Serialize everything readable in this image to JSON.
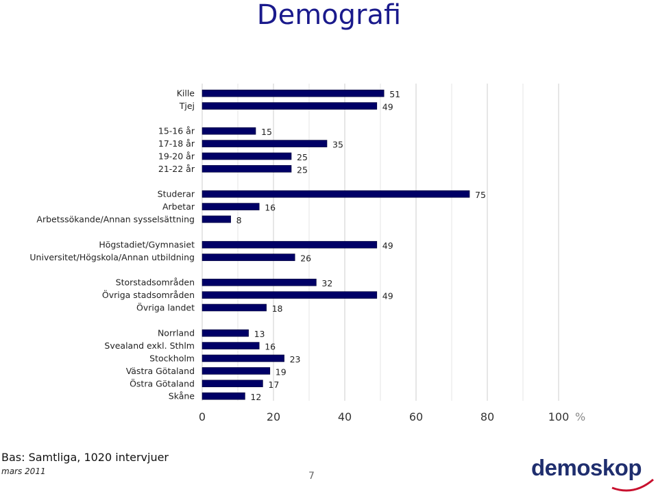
{
  "page_title": "Demografi",
  "footer": {
    "base_text": "Bas: Samtliga, 1020 intervjuer",
    "date": "mars 2011",
    "page_number": "7",
    "logo_text": "demoskop"
  },
  "colors": {
    "bar_fill": "#000066",
    "title": "#1a1a8c",
    "grid": "#cccccc",
    "logo": "#1f2e6e",
    "logo_accent": "#c8102e"
  },
  "chart_data": {
    "type": "bar",
    "orientation": "horizontal",
    "title": "Demografi",
    "x_unit": "%",
    "xlim": [
      0,
      100
    ],
    "xticks": [
      0,
      20,
      40,
      60,
      80,
      100
    ],
    "grid": true,
    "groups": [
      {
        "categories": [
          "Kille",
          "Tjej"
        ],
        "values": [
          51,
          49
        ]
      },
      {
        "categories": [
          "15-16 år",
          "17-18 år",
          "19-20 år",
          "21-22 år"
        ],
        "values": [
          15,
          35,
          25,
          25
        ]
      },
      {
        "categories": [
          "Studerar",
          "Arbetar",
          "Arbetssökande/Annan sysselsättning"
        ],
        "values": [
          75,
          16,
          8
        ]
      },
      {
        "categories": [
          "Högstadiet/Gymnasiet",
          "Universitet/Högskola/Annan utbildning"
        ],
        "values": [
          49,
          26
        ]
      },
      {
        "categories": [
          "Storstadsområden",
          "Övriga stadsområden",
          "Övriga landet"
        ],
        "values": [
          32,
          49,
          18
        ]
      },
      {
        "categories": [
          "Norrland",
          "Svealand exkl. Sthlm",
          "Stockholm",
          "Västra Götaland",
          "Östra Götaland",
          "Skåne"
        ],
        "values": [
          13,
          16,
          23,
          19,
          17,
          12
        ]
      }
    ]
  }
}
